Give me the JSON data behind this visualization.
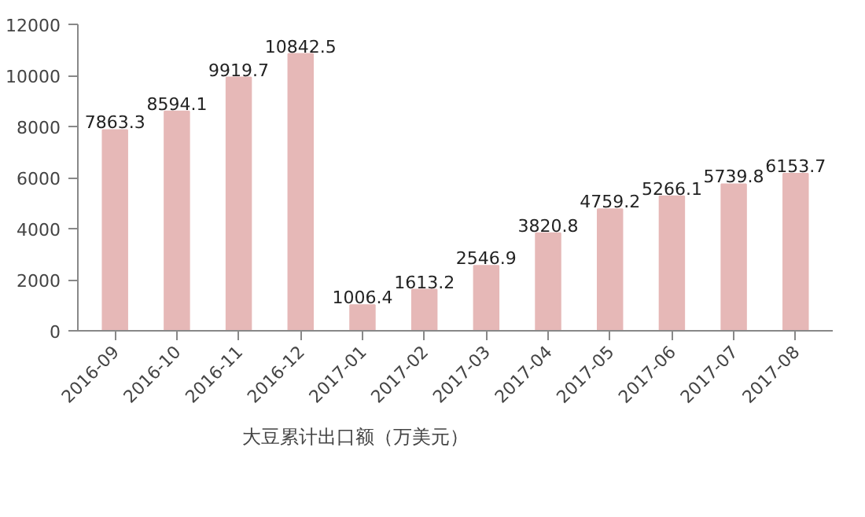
{
  "chart_data": {
    "type": "bar",
    "categories": [
      "2016-09",
      "2016-10",
      "2016-11",
      "2016-12",
      "2017-01",
      "2017-02",
      "2017-03",
      "2017-04",
      "2017-05",
      "2017-06",
      "2017-07",
      "2017-08"
    ],
    "series": [
      {
        "name": "大豆累计出口额（万美元）",
        "color": "#e6b8b7",
        "values": [
          7863.3,
          8594.1,
          9919.7,
          10842.5,
          1006.4,
          1613.2,
          2546.9,
          3820.8,
          4759.2,
          5266.1,
          5739.8,
          6153.7
        ]
      }
    ],
    "ylim": [
      0,
      12000
    ],
    "yticks": [
      0,
      2000,
      4000,
      6000,
      8000,
      10000,
      12000
    ],
    "grid": false,
    "legend": "bottom left",
    "data_labels": true
  }
}
